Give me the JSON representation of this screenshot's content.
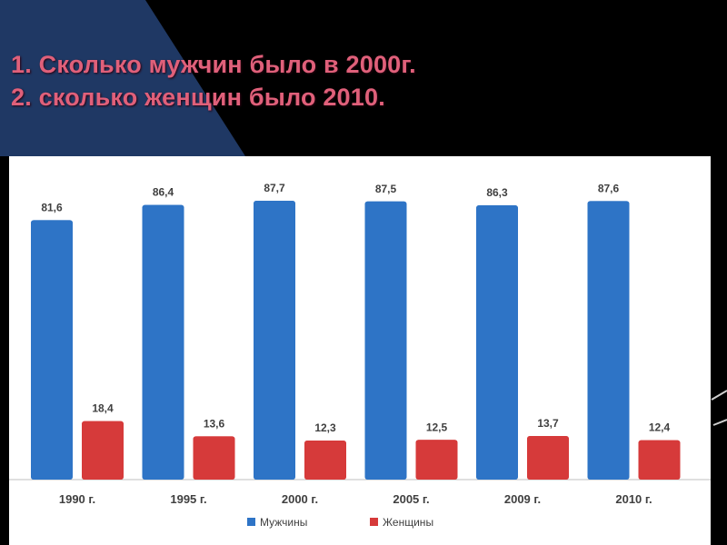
{
  "questions": {
    "q1": "1. Сколько мужчин было в 2000г.",
    "q2": "2. сколько женщин было 2010."
  },
  "colors": {
    "background": "#000000",
    "triangle": "#1f3864",
    "question_text": "#e0607a",
    "men": "#2e74c6",
    "women": "#d63a3a"
  },
  "chart_data": {
    "type": "bar",
    "categories": [
      "1990 г.",
      "1995 г.",
      "2000 г.",
      "2005 г.",
      "2009 г.",
      "2010 г."
    ],
    "series": [
      {
        "name": "Мужчины",
        "values": [
          81.6,
          86.4,
          87.7,
          87.5,
          86.3,
          87.6
        ],
        "labels": [
          "81,6",
          "86,4",
          "87,7",
          "87,5",
          "86,3",
          "87,6"
        ],
        "color": "#2e74c6"
      },
      {
        "name": "Женщины",
        "values": [
          18.4,
          13.6,
          12.3,
          12.5,
          13.7,
          12.4
        ],
        "labels": [
          "18,4",
          "13,6",
          "12,3",
          "12,5",
          "13,7",
          "12,4"
        ],
        "color": "#d63a3a"
      }
    ],
    "ylim": [
      0,
      100
    ],
    "grid": false,
    "legend": "bottom"
  }
}
